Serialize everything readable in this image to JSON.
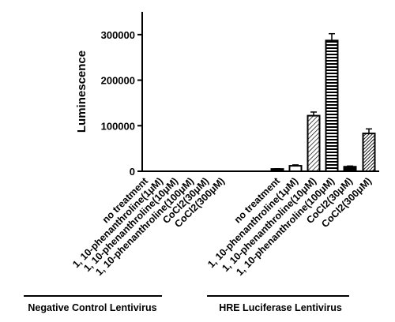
{
  "chart_data": {
    "type": "bar",
    "ylabel": "Luminescence",
    "xlabel": "",
    "ylim": [
      0,
      350000
    ],
    "yticks": [
      0,
      100000,
      200000,
      300000
    ],
    "ytick_labels": [
      "0",
      "100000",
      "200000",
      "300000"
    ],
    "categories": [
      "no treatment",
      "1, 10-phenanthroline(1μM)",
      "1, 10-phenanthroline(10μM)",
      "1, 10-phenanthroline(100μM)",
      "CoCl2(30μM)",
      "CoCl2(300μM)",
      "no treatment",
      "1, 10-phenanthroline(1μM)",
      "1, 10-phenanthroline(10μM)",
      "1, 10-phenanthroline(100μM)",
      "CoCl2(30μM)",
      "CoCl2(300μM)"
    ],
    "values": [
      0,
      0,
      0,
      0,
      0,
      0,
      5000,
      12000,
      122000,
      287000,
      10000,
      83000
    ],
    "errors": [
      0,
      0,
      0,
      0,
      0,
      0,
      500,
      2000,
      8000,
      15000,
      1500,
      10000
    ],
    "patterns": [
      "solid",
      "solid",
      "solid",
      "solid",
      "solid",
      "solid",
      "solid",
      "open",
      "diagonal",
      "horizontal",
      "solid",
      "dense-diagonal"
    ],
    "groups": [
      {
        "label": "Negative Control Lentivirus",
        "start": 0,
        "end": 5
      },
      {
        "label": "HRE Luciferase Lentivirus",
        "start": 6,
        "end": 11
      }
    ],
    "grid": false,
    "legend": "none"
  }
}
